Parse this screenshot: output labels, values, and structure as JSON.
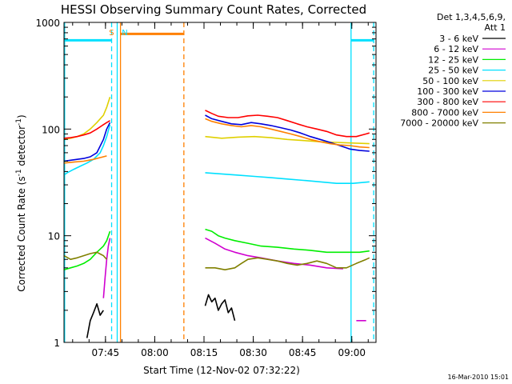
{
  "chart_data": {
    "type": "line",
    "title": "HESSI Observing Summary Count Rates, Corrected",
    "xlabel": "Start Time (12-Nov-02 07:32:22)",
    "ylabel_main": "Corrected Count Rate (s",
    "ylabel_sup1": "-1",
    "ylabel_mid": " detector",
    "ylabel_sup2": "-1",
    "ylabel_end": ")",
    "y_scale": "log",
    "ylim": [
      1,
      1000
    ],
    "xlim_minutes": [
      0,
      95
    ],
    "x_ticks": [
      {
        "label": "07:45",
        "minute": 12.63
      },
      {
        "label": "08:00",
        "minute": 27.63
      },
      {
        "label": "08:15",
        "minute": 42.63
      },
      {
        "label": "08:30",
        "minute": 57.63
      },
      {
        "label": "08:45",
        "minute": 72.63
      },
      {
        "label": "09:00",
        "minute": 87.63
      }
    ],
    "y_ticks": [
      {
        "label": "1",
        "value": 1
      },
      {
        "label": "10",
        "value": 10
      },
      {
        "label": "100",
        "value": 100
      },
      {
        "label": "1000",
        "value": 1000
      }
    ],
    "legend_header": [
      "Det 1,3,4,5,6,9,",
      "Att 1"
    ],
    "legend_placement": "right",
    "series": [
      {
        "name": "3 - 6 keV",
        "color": "#000000",
        "segments": [
          [
            [
              7,
              1.1
            ],
            [
              8,
              1.6
            ],
            [
              9,
              1.9
            ],
            [
              10,
              2.3
            ],
            [
              11,
              1.8
            ],
            [
              12,
              2.0
            ]
          ],
          [
            [
              43,
              2.2
            ],
            [
              44,
              2.8
            ],
            [
              45,
              2.4
            ],
            [
              46,
              2.6
            ],
            [
              47,
              2.0
            ],
            [
              48,
              2.3
            ],
            [
              49,
              2.5
            ],
            [
              50,
              1.9
            ],
            [
              51,
              2.1
            ],
            [
              52,
              1.6
            ]
          ]
        ]
      },
      {
        "name": "6 - 12 keV",
        "color": "#d000d0",
        "segments": [
          [
            [
              12,
              2.6
            ],
            [
              12.5,
              4.0
            ],
            [
              13,
              6.0
            ],
            [
              13.5,
              8.0
            ],
            [
              14,
              9.5
            ]
          ],
          [
            [
              43,
              9.5
            ],
            [
              46,
              8.5
            ],
            [
              49,
              7.5
            ],
            [
              52,
              7.0
            ],
            [
              56,
              6.5
            ],
            [
              60,
              6.2
            ],
            [
              65,
              5.8
            ],
            [
              70,
              5.5
            ],
            [
              75,
              5.3
            ],
            [
              80,
              5.0
            ],
            [
              85,
              4.9
            ]
          ],
          [
            [
              89,
              1.6
            ],
            [
              92,
              1.6
            ]
          ]
        ]
      },
      {
        "name": "12 - 25 keV",
        "color": "#00ee00",
        "segments": [
          [
            [
              0,
              4.8
            ],
            [
              2,
              5.0
            ],
            [
              4,
              5.2
            ],
            [
              6,
              5.5
            ],
            [
              8,
              6.0
            ],
            [
              10,
              7.0
            ],
            [
              12,
              8.0
            ],
            [
              13,
              9.0
            ],
            [
              14,
              11.0
            ]
          ],
          [
            [
              43,
              11.5
            ],
            [
              45,
              11.0
            ],
            [
              47,
              10.0
            ],
            [
              49,
              9.5
            ],
            [
              52,
              9.0
            ],
            [
              56,
              8.5
            ],
            [
              60,
              8.0
            ],
            [
              65,
              7.8
            ],
            [
              70,
              7.5
            ],
            [
              75,
              7.3
            ],
            [
              80,
              7.0
            ],
            [
              85,
              7.0
            ],
            [
              90,
              7.0
            ],
            [
              93,
              7.2
            ]
          ]
        ]
      },
      {
        "name": "25 - 50 keV",
        "color": "#00e0ff",
        "segments": [
          [
            [
              0,
              37
            ],
            [
              1,
              39
            ],
            [
              3,
              42
            ],
            [
              5,
              45
            ],
            [
              7,
              48
            ],
            [
              9,
              52
            ],
            [
              11,
              60
            ],
            [
              12,
              70
            ],
            [
              13,
              85
            ],
            [
              14,
              110
            ]
          ],
          [
            [
              43,
              39
            ],
            [
              48,
              38
            ],
            [
              53,
              37
            ],
            [
              58,
              36
            ],
            [
              63,
              35
            ],
            [
              68,
              34
            ],
            [
              73,
              33
            ],
            [
              78,
              32
            ],
            [
              83,
              31
            ],
            [
              88,
              31
            ],
            [
              93,
              32
            ]
          ]
        ]
      },
      {
        "name": "50 - 100 keV",
        "color": "#e0d000",
        "segments": [
          [
            [
              0,
              80
            ],
            [
              2,
              82
            ],
            [
              4,
              85
            ],
            [
              6,
              90
            ],
            [
              8,
              100
            ],
            [
              10,
              115
            ],
            [
              12,
              135
            ],
            [
              13,
              160
            ],
            [
              14,
              200
            ]
          ],
          [
            [
              43,
              85
            ],
            [
              48,
              82
            ],
            [
              53,
              84
            ],
            [
              58,
              85
            ],
            [
              63,
              83
            ],
            [
              68,
              80
            ],
            [
              73,
              78
            ],
            [
              78,
              76
            ],
            [
              83,
              75
            ],
            [
              88,
              74
            ],
            [
              93,
              73
            ]
          ]
        ]
      },
      {
        "name": "100 - 300 keV",
        "color": "#0000dd",
        "segments": [
          [
            [
              0,
              50
            ],
            [
              2,
              51
            ],
            [
              4,
              52
            ],
            [
              6,
              53
            ],
            [
              8,
              55
            ],
            [
              10,
              60
            ],
            [
              12,
              80
            ],
            [
              13,
              100
            ],
            [
              14,
              115
            ]
          ],
          [
            [
              43,
              135
            ],
            [
              45,
              125
            ],
            [
              48,
              118
            ],
            [
              51,
              112
            ],
            [
              54,
              110
            ],
            [
              57,
              115
            ],
            [
              60,
              112
            ],
            [
              63,
              108
            ],
            [
              66,
              103
            ],
            [
              69,
              98
            ],
            [
              72,
              92
            ],
            [
              75,
              85
            ],
            [
              78,
              80
            ],
            [
              81,
              75
            ],
            [
              84,
              70
            ],
            [
              87,
              65
            ],
            [
              90,
              63
            ],
            [
              93,
              62
            ]
          ]
        ]
      },
      {
        "name": "300 - 800 keV",
        "color": "#ff0000",
        "segments": [
          [
            [
              0,
              82
            ],
            [
              2,
              83
            ],
            [
              4,
              85
            ],
            [
              6,
              88
            ],
            [
              8,
              92
            ],
            [
              10,
              100
            ],
            [
              12,
              110
            ],
            [
              13,
              115
            ],
            [
              14,
              120
            ]
          ],
          [
            [
              43,
              150
            ],
            [
              45,
              140
            ],
            [
              47,
              132
            ],
            [
              50,
              128
            ],
            [
              53,
              128
            ],
            [
              56,
              133
            ],
            [
              59,
              135
            ],
            [
              62,
              132
            ],
            [
              65,
              128
            ],
            [
              68,
              120
            ],
            [
              71,
              112
            ],
            [
              74,
              105
            ],
            [
              77,
              100
            ],
            [
              80,
              95
            ],
            [
              83,
              88
            ],
            [
              86,
              85
            ],
            [
              89,
              85
            ],
            [
              92,
              90
            ],
            [
              93,
              92
            ]
          ]
        ]
      },
      {
        "name": "800 - 7000 keV",
        "color": "#ff8000",
        "segments": [
          [
            [
              0,
              48
            ],
            [
              3,
              49
            ],
            [
              6,
              50
            ],
            [
              9,
              52
            ],
            [
              11,
              54
            ],
            [
              13,
              56
            ]
          ],
          [
            [
              43,
              125
            ],
            [
              45,
              118
            ],
            [
              48,
              112
            ],
            [
              51,
              108
            ],
            [
              54,
              105
            ],
            [
              57,
              108
            ],
            [
              60,
              105
            ],
            [
              63,
              100
            ],
            [
              66,
              95
            ],
            [
              69,
              90
            ],
            [
              72,
              85
            ],
            [
              75,
              80
            ],
            [
              78,
              76
            ],
            [
              81,
              73
            ],
            [
              84,
              71
            ],
            [
              87,
              70
            ],
            [
              90,
              68
            ],
            [
              93,
              67
            ]
          ]
        ]
      },
      {
        "name": "7000 - 20000 keV",
        "color": "#808000",
        "segments": [
          [
            [
              0,
              6.5
            ],
            [
              2,
              6.0
            ],
            [
              4,
              6.2
            ],
            [
              6,
              6.5
            ],
            [
              8,
              6.8
            ],
            [
              10,
              7.0
            ],
            [
              12,
              6.5
            ],
            [
              13,
              6.0
            ]
          ],
          [
            [
              43,
              5.0
            ],
            [
              46,
              5.0
            ],
            [
              49,
              4.8
            ],
            [
              52,
              5.0
            ],
            [
              54,
              5.5
            ],
            [
              56,
              6.0
            ],
            [
              59,
              6.2
            ],
            [
              62,
              6.0
            ],
            [
              65,
              5.8
            ],
            [
              68,
              5.5
            ],
            [
              71,
              5.3
            ],
            [
              74,
              5.5
            ],
            [
              77,
              5.8
            ],
            [
              80,
              5.5
            ],
            [
              83,
              5.0
            ],
            [
              86,
              5.0
            ],
            [
              89,
              5.5
            ],
            [
              92,
              6.0
            ],
            [
              93,
              6.2
            ]
          ]
        ]
      }
    ],
    "markers": [
      {
        "type": "line",
        "minute": 0.2,
        "color": "#00e0ff",
        "style": "solid"
      },
      {
        "type": "line",
        "minute": 14.5,
        "color": "#00e0ff",
        "style": "dashed"
      },
      {
        "type": "line",
        "minute": 16.2,
        "color": "#00e0ff",
        "style": "solid"
      },
      {
        "type": "line",
        "minute": 17.2,
        "color": "#ff8000",
        "style": "solid"
      },
      {
        "type": "line",
        "minute": 36.5,
        "color": "#ff8000",
        "style": "dashed"
      },
      {
        "type": "line",
        "minute": 87.4,
        "color": "#00e0ff",
        "style": "solid"
      },
      {
        "type": "line",
        "minute": 94.3,
        "color": "#00e0ff",
        "style": "dashed"
      },
      {
        "type": "bar",
        "from": 0.2,
        "to": 14.5,
        "color": "#00e0ff",
        "value": 680
      },
      {
        "type": "bar",
        "from": 17.2,
        "to": 36.5,
        "color": "#ff8000",
        "value": 780
      },
      {
        "type": "bar",
        "from": 87.4,
        "to": 94.3,
        "color": "#00e0ff",
        "value": 680
      }
    ],
    "flags": [
      {
        "text": "S",
        "minute": 13.7,
        "color": "#ff8000"
      },
      {
        "text": "N",
        "minute": 17.6,
        "color": "#00e0ff"
      }
    ]
  },
  "footer": {
    "date": "16-Mar-2010 15:01"
  }
}
